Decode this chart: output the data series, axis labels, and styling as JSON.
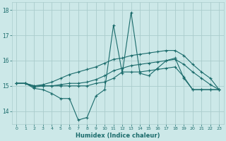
{
  "xlabel": "Humidex (Indice chaleur)",
  "background_color": "#cce8e8",
  "grid_color": "#aacccc",
  "line_color": "#1a6b6b",
  "x_ticks": [
    0,
    1,
    2,
    3,
    4,
    5,
    6,
    7,
    8,
    9,
    10,
    11,
    12,
    13,
    14,
    15,
    16,
    17,
    18,
    19,
    20,
    21,
    22,
    23
  ],
  "ylim": [
    13.5,
    18.3
  ],
  "yticks": [
    14,
    15,
    16,
    17,
    18
  ],
  "series": [
    [
      15.1,
      15.1,
      14.9,
      14.85,
      14.7,
      14.5,
      14.5,
      13.65,
      13.75,
      14.6,
      14.85,
      17.4,
      15.5,
      17.9,
      15.5,
      15.4,
      15.7,
      16.0,
      16.1,
      15.3,
      14.85,
      14.85,
      14.85,
      14.85
    ],
    [
      15.1,
      15.1,
      14.95,
      15.0,
      15.0,
      15.0,
      15.0,
      15.0,
      15.0,
      15.1,
      15.15,
      15.3,
      15.55,
      15.55,
      15.55,
      15.6,
      15.65,
      15.7,
      15.75,
      15.35,
      14.85,
      14.85,
      14.85,
      14.85
    ],
    [
      15.1,
      15.1,
      15.0,
      15.05,
      15.15,
      15.3,
      15.45,
      15.55,
      15.65,
      15.75,
      15.9,
      16.05,
      16.1,
      16.2,
      16.25,
      16.3,
      16.35,
      16.4,
      16.4,
      16.2,
      15.85,
      15.55,
      15.3,
      14.85
    ],
    [
      15.1,
      15.1,
      15.0,
      15.0,
      15.0,
      15.05,
      15.1,
      15.1,
      15.15,
      15.25,
      15.4,
      15.6,
      15.7,
      15.8,
      15.85,
      15.9,
      15.95,
      16.0,
      16.05,
      15.85,
      15.55,
      15.3,
      15.05,
      14.85
    ]
  ]
}
